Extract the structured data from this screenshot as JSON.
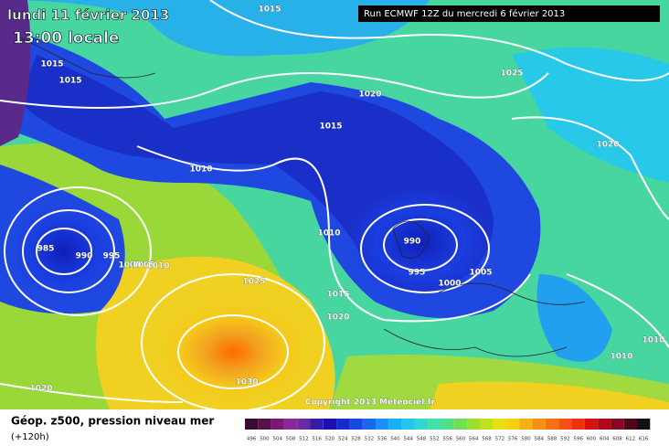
{
  "header": {
    "date": "lundi 11 février 2013",
    "time": "13:00 locale",
    "run": "Run ECMWF 12Z du mercredi 6 février 2013"
  },
  "isobar_labels": [
    "1015",
    "1015",
    "1015",
    "1020",
    "1025",
    "1015",
    "1020",
    "1010",
    "1010",
    "985",
    "990",
    "995",
    "1000",
    "1005",
    "1010",
    "990",
    "995",
    "1005",
    "1000",
    "1025",
    "1015",
    "1020",
    "1030",
    "1020",
    "1010",
    "1010"
  ],
  "copyright": "Copyright 2013 Meteociel.fr",
  "legend": {
    "title": "Géop. z500, pression niveau mer",
    "lead": "(+120h)",
    "ticks": [
      "496",
      "500",
      "504",
      "508",
      "512",
      "516",
      "520",
      "524",
      "528",
      "532",
      "536",
      "540",
      "544",
      "548",
      "552",
      "556",
      "560",
      "564",
      "568",
      "572",
      "576",
      "580",
      "584",
      "588",
      "592",
      "596",
      "600",
      "604",
      "608",
      "612",
      "616"
    ]
  }
}
